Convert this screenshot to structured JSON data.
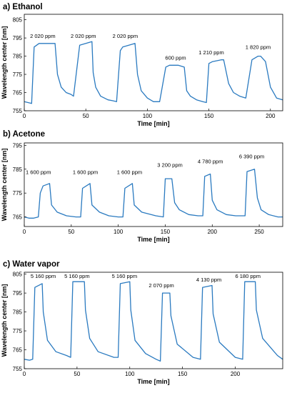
{
  "chart_data": [
    {
      "type": "line",
      "title": "a) Ethanol",
      "xlabel": "Time [min]",
      "ylabel": "Wavelength center [nm]",
      "xlim": [
        0,
        210
      ],
      "ylim": [
        755,
        808
      ],
      "xticks": [
        0,
        50,
        100,
        150,
        200
      ],
      "yticks": [
        755,
        765,
        775,
        785,
        795,
        805
      ],
      "series_color": "#2a7ac0",
      "grid": false,
      "annotations": [
        {
          "text": "2 020 ppm",
          "x": 15,
          "y": 795
        },
        {
          "text": "2 020 ppm",
          "x": 48,
          "y": 795
        },
        {
          "text": "2 020 ppm",
          "x": 82,
          "y": 795
        },
        {
          "text": "600 ppm",
          "x": 123,
          "y": 783
        },
        {
          "text": "1 210 ppm",
          "x": 152,
          "y": 786
        },
        {
          "text": "1 820 ppm",
          "x": 190,
          "y": 789
        }
      ],
      "x": [
        0,
        3,
        6,
        8,
        12,
        20,
        25,
        27,
        30,
        34,
        38,
        40,
        45,
        50,
        55,
        56,
        58,
        62,
        68,
        72,
        75,
        78,
        80,
        85,
        90,
        92,
        95,
        100,
        105,
        110,
        115,
        118,
        125,
        130,
        132,
        135,
        140,
        145,
        148,
        150,
        153,
        160,
        162,
        166,
        170,
        175,
        180,
        185,
        190,
        192,
        196,
        200,
        205,
        210
      ],
      "y": [
        760,
        759.5,
        759,
        790,
        792,
        792,
        792,
        775,
        768,
        765,
        764,
        763,
        791,
        792,
        793,
        776,
        768,
        763,
        761,
        760.5,
        760,
        788,
        790,
        791,
        792,
        775,
        766,
        762,
        760,
        760,
        779,
        780,
        780,
        779,
        766,
        763,
        761,
        760,
        759.5,
        781,
        782,
        783,
        783,
        770,
        765,
        763,
        762,
        783,
        785,
        785,
        782,
        768,
        762,
        761
      ]
    },
    {
      "type": "line",
      "title": "b) Acetone",
      "xlabel": "Time [min]",
      "ylabel": "Wavelength center [nm]",
      "xlim": [
        0,
        275
      ],
      "ylim": [
        761,
        796
      ],
      "xticks": [
        0,
        50,
        100,
        150,
        200,
        250
      ],
      "yticks": [
        765,
        775,
        785,
        795
      ],
      "series_color": "#2a7ac0",
      "grid": false,
      "annotations": [
        {
          "text": "1 600 ppm",
          "x": 15,
          "y": 783
        },
        {
          "text": "1 600 ppm",
          "x": 65,
          "y": 783
        },
        {
          "text": "1 600 ppm",
          "x": 112,
          "y": 783
        },
        {
          "text": "3 200 ppm",
          "x": 155,
          "y": 786
        },
        {
          "text": "4 780 ppm",
          "x": 198,
          "y": 787.5
        },
        {
          "text": "6 390 ppm",
          "x": 242,
          "y": 789.5
        }
      ],
      "x": [
        0,
        5,
        10,
        15,
        17,
        20,
        27,
        29,
        35,
        45,
        55,
        60,
        62,
        70,
        72,
        80,
        90,
        100,
        105,
        107,
        115,
        117,
        125,
        140,
        148,
        150,
        157,
        160,
        165,
        175,
        185,
        190,
        192,
        198,
        200,
        205,
        215,
        225,
        235,
        237,
        245,
        248,
        252,
        260,
        270,
        275
      ],
      "y": [
        765,
        764.5,
        764.5,
        765,
        775,
        778,
        779,
        770,
        767,
        765.5,
        765,
        765,
        777,
        779,
        770,
        767,
        765.5,
        765,
        765,
        777,
        779,
        770,
        767,
        765.5,
        765,
        781,
        781,
        771,
        768,
        766,
        765.5,
        765.5,
        782,
        783,
        772,
        768,
        766,
        765.5,
        765.5,
        784,
        785,
        773,
        768,
        766,
        765,
        765
      ]
    },
    {
      "type": "line",
      "title": "c) Water vapor",
      "xlabel": "Time [min]",
      "ylabel": "Wavelength center [nm]",
      "xlim": [
        0,
        245
      ],
      "ylim": [
        755,
        806
      ],
      "xticks": [
        0,
        50,
        100,
        150,
        200
      ],
      "yticks": [
        755,
        765,
        775,
        785,
        795,
        805
      ],
      "series_color": "#2a7ac0",
      "grid": false,
      "annotations": [
        {
          "text": "5 160 ppm",
          "x": 18,
          "y": 803
        },
        {
          "text": "5 160 ppm",
          "x": 50,
          "y": 803
        },
        {
          "text": "5 160 ppm",
          "x": 95,
          "y": 803
        },
        {
          "text": "2 070 ppm",
          "x": 130,
          "y": 798
        },
        {
          "text": "4 130 ppm",
          "x": 175,
          "y": 801
        },
        {
          "text": "6 180 ppm",
          "x": 212,
          "y": 803
        }
      ],
      "x": [
        0,
        5,
        8,
        10,
        17,
        18,
        22,
        30,
        40,
        44,
        46,
        57,
        58,
        62,
        70,
        85,
        89,
        91,
        100,
        101,
        105,
        115,
        125,
        129,
        131,
        138,
        139,
        145,
        160,
        167,
        169,
        178,
        179,
        185,
        200,
        207,
        209,
        219,
        220,
        226,
        240,
        245
      ],
      "y": [
        760,
        759.5,
        760,
        798,
        800,
        785,
        770,
        764,
        762,
        761,
        801,
        801,
        786,
        771,
        764,
        761,
        761,
        800,
        801,
        786,
        770,
        763,
        760,
        759,
        795,
        795,
        783,
        768,
        761,
        760,
        798,
        799,
        784,
        769,
        761,
        760,
        801,
        801,
        786,
        771,
        762,
        760
      ]
    }
  ]
}
